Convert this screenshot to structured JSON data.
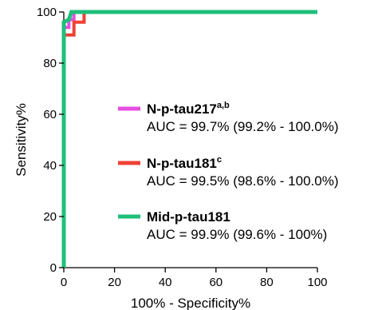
{
  "chart_data": {
    "type": "line",
    "title": "",
    "xlabel": "100% - Specificity%",
    "ylabel": "Sensitivity%",
    "xlim": [
      0,
      100
    ],
    "ylim": [
      0,
      100
    ],
    "xticks": [
      "0",
      "20",
      "40",
      "60",
      "80",
      "100"
    ],
    "yticks": [
      "0",
      "20",
      "40",
      "60",
      "80",
      "100"
    ],
    "grid": false,
    "legend_position": "center-right",
    "series": [
      {
        "name": "N-p-tau217",
        "superscript": "a,b",
        "auc_label": "AUC = 99.7% (99.2% - 100.0%)",
        "color": "#e64ee0",
        "points": [
          [
            0,
            0
          ],
          [
            0,
            94
          ],
          [
            2,
            94
          ],
          [
            2,
            97
          ],
          [
            4,
            97
          ],
          [
            4,
            100
          ],
          [
            100,
            100
          ]
        ]
      },
      {
        "name": "N-p-tau181",
        "superscript": "c",
        "auc_label": "AUC = 99.5% (98.6% - 100.0%)",
        "color": "#ef4136",
        "points": [
          [
            0,
            0
          ],
          [
            0,
            91
          ],
          [
            4,
            91
          ],
          [
            4,
            96
          ],
          [
            8,
            96
          ],
          [
            8,
            100
          ],
          [
            100,
            100
          ]
        ]
      },
      {
        "name": "Mid-p-tau181",
        "superscript": "",
        "auc_label": "AUC = 99.9% (99.6% - 100%)",
        "color": "#1fbf7a",
        "points": [
          [
            0,
            0
          ],
          [
            0,
            96
          ],
          [
            2,
            97
          ],
          [
            3,
            100
          ],
          [
            100,
            100
          ]
        ]
      }
    ]
  }
}
